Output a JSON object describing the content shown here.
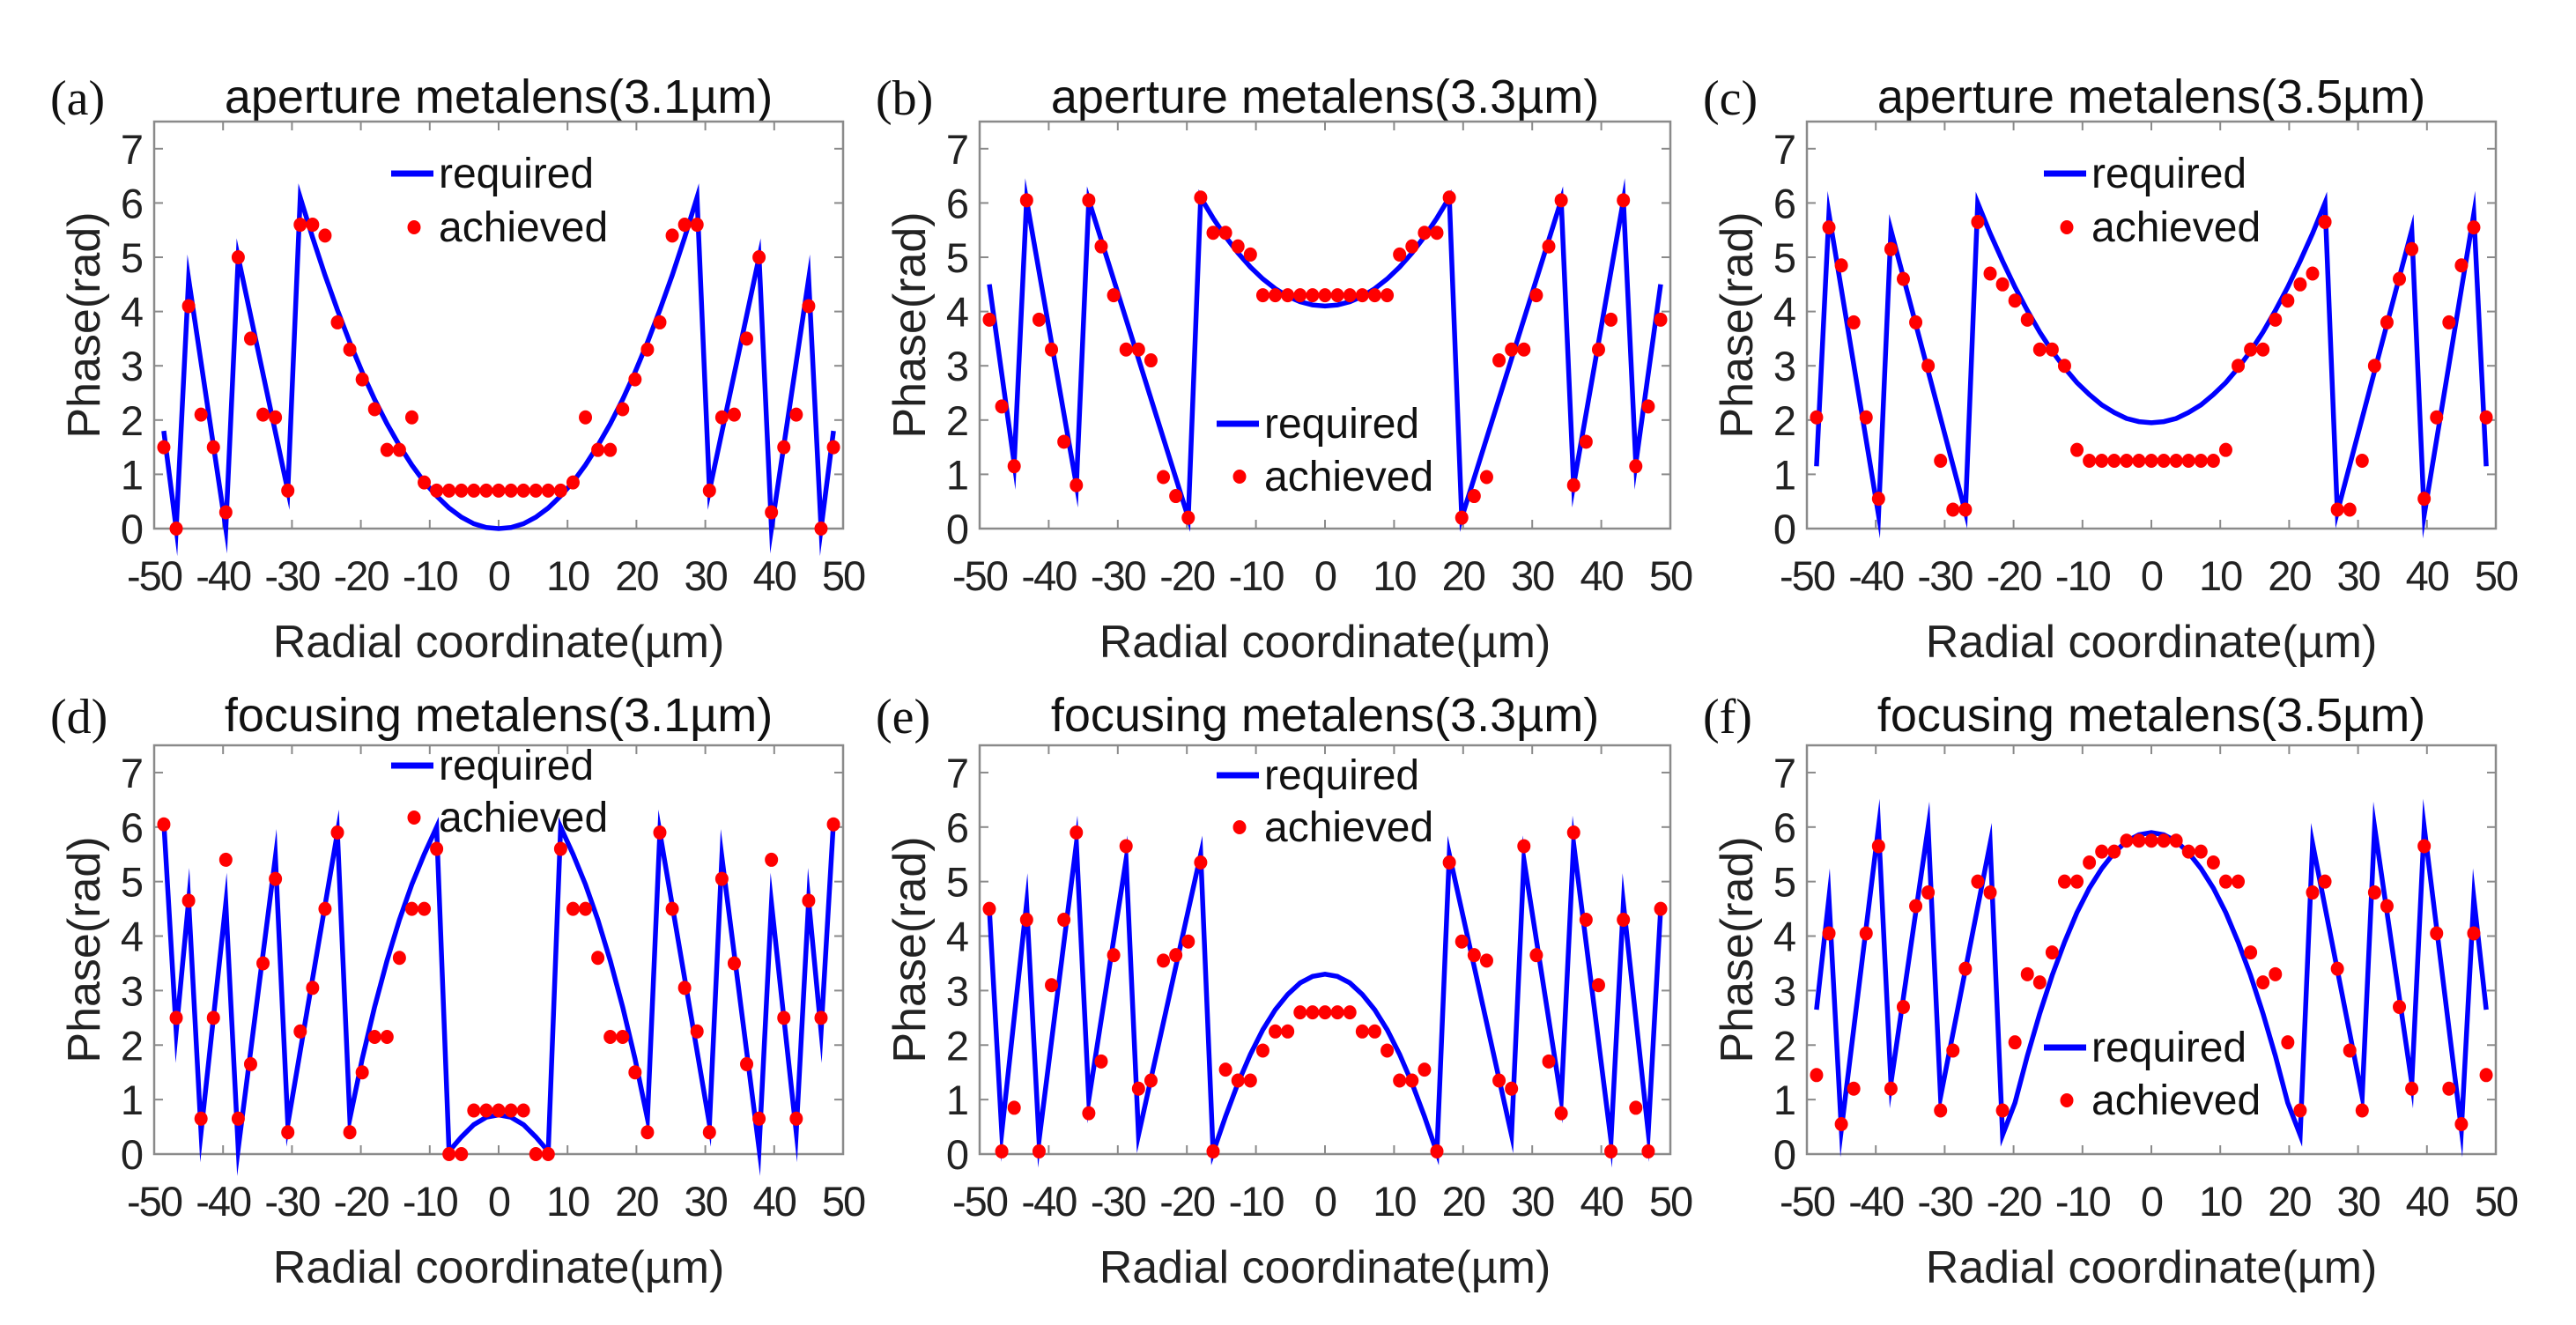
{
  "chart_data": [
    {
      "panel_label": "(a)",
      "title": "aperture metalens(3.1µm)",
      "type": "line+scatter",
      "xlabel": "Radial coordinate(µm)",
      "ylabel": "Phase(rad)",
      "xlim": [
        -50,
        50
      ],
      "ylim": [
        0,
        7.5
      ],
      "xticks": [
        -50,
        -40,
        -30,
        -20,
        -10,
        0,
        10,
        20,
        30,
        40,
        50
      ],
      "yticks": [
        0,
        1,
        2,
        3,
        4,
        5,
        6,
        7
      ],
      "legend": {
        "position": "top-center",
        "entries": [
          "required",
          "achieved"
        ]
      },
      "symmetric_about_zero": true,
      "series": [
        {
          "name": "required",
          "type": "line",
          "color": "#0000ff",
          "x": [
            0,
            1.8,
            3.6,
            5.4,
            7.2,
            9,
            10.8,
            12.6,
            14.4,
            16.2,
            18,
            19.8,
            21.6,
            23.4,
            25.2,
            27,
            28.8,
            30.6,
            37.8,
            39.6,
            45,
            46.8,
            48.6
          ],
          "y": [
            0,
            0.02,
            0.09,
            0.21,
            0.38,
            0.6,
            0.86,
            1.17,
            1.53,
            1.93,
            2.38,
            2.88,
            3.43,
            4.03,
            4.67,
            5.36,
            6.1,
            0.7,
            5.0,
            0,
            4.6,
            0,
            1.8
          ]
        },
        {
          "name": "achieved",
          "type": "scatter",
          "color": "#ff0000",
          "x": [
            0,
            1.8,
            3.6,
            5.4,
            7.2,
            9,
            10.8,
            12.6,
            14.4,
            16.2,
            18,
            19.8,
            21.6,
            23.4,
            25.2,
            27,
            28.8,
            30.6,
            32.4,
            34.2,
            36,
            37.8,
            39.6,
            41.4,
            43.2,
            45,
            46.8,
            48.6
          ],
          "y": [
            0.7,
            0.7,
            0.7,
            0.7,
            0.7,
            0.7,
            0.85,
            2.05,
            1.45,
            1.45,
            2.2,
            2.75,
            3.3,
            3.8,
            5.4,
            5.6,
            5.6,
            0.7,
            2.05,
            2.1,
            3.5,
            5.0,
            0.3,
            1.5,
            2.1,
            4.1,
            0,
            1.5
          ]
        }
      ]
    },
    {
      "panel_label": "(b)",
      "title": "aperture metalens(3.3µm)",
      "type": "line+scatter",
      "xlabel": "Radial coordinate(µm)",
      "ylabel": "Phase(rad)",
      "xlim": [
        -50,
        50
      ],
      "ylim": [
        0,
        7.5
      ],
      "xticks": [
        -50,
        -40,
        -30,
        -20,
        -10,
        0,
        10,
        20,
        30,
        40,
        50
      ],
      "yticks": [
        0,
        1,
        2,
        3,
        4,
        5,
        6,
        7
      ],
      "legend": {
        "position": "bottom-center",
        "entries": [
          "required",
          "achieved"
        ]
      },
      "symmetric_about_zero": true,
      "series": [
        {
          "name": "required",
          "type": "line",
          "color": "#0000ff",
          "x": [
            0,
            1.8,
            3.6,
            5.4,
            7.2,
            9,
            10.8,
            12.6,
            14.4,
            16.2,
            18,
            19.8,
            34.2,
            36,
            43.2,
            45,
            48.6
          ],
          "y": [
            4.1,
            4.12,
            4.18,
            4.28,
            4.42,
            4.6,
            4.82,
            5.08,
            5.38,
            5.72,
            6.1,
            0.2,
            6.05,
            0.8,
            6.05,
            1.2,
            4.5
          ]
        },
        {
          "name": "achieved",
          "type": "scatter",
          "color": "#ff0000",
          "x": [
            0,
            1.8,
            3.6,
            5.4,
            7.2,
            9,
            10.8,
            12.6,
            14.4,
            16.2,
            18,
            19.8,
            21.6,
            23.4,
            25.2,
            27,
            28.8,
            30.6,
            32.4,
            34.2,
            36,
            37.8,
            39.6,
            41.4,
            43.2,
            45,
            46.8,
            48.6
          ],
          "y": [
            4.3,
            4.3,
            4.3,
            4.3,
            4.3,
            4.3,
            5.05,
            5.2,
            5.45,
            5.45,
            6.1,
            0.2,
            0.6,
            0.95,
            3.1,
            3.3,
            3.3,
            4.3,
            5.2,
            6.05,
            0.8,
            1.6,
            3.3,
            3.85,
            6.05,
            1.15,
            2.25,
            3.85
          ]
        }
      ]
    },
    {
      "panel_label": "(c)",
      "title": "aperture metalens(3.5µm)",
      "type": "line+scatter",
      "xlabel": "Radial coordinate(µm)",
      "ylabel": "Phase(rad)",
      "xlim": [
        -50,
        50
      ],
      "ylim": [
        0,
        7.5
      ],
      "xticks": [
        -50,
        -40,
        -30,
        -20,
        -10,
        0,
        10,
        20,
        30,
        40,
        50
      ],
      "yticks": [
        0,
        1,
        2,
        3,
        4,
        5,
        6,
        7
      ],
      "legend": {
        "position": "top-center",
        "entries": [
          "required",
          "achieved"
        ]
      },
      "symmetric_about_zero": true,
      "series": [
        {
          "name": "required",
          "type": "line",
          "color": "#0000ff",
          "x": [
            0,
            1.8,
            3.6,
            5.4,
            7.2,
            9,
            10.8,
            12.6,
            14.4,
            16.2,
            18,
            19.8,
            21.6,
            23.4,
            25.2,
            27,
            37.8,
            39.6,
            46.8,
            48.6
          ],
          "y": [
            1.95,
            1.97,
            2.03,
            2.14,
            2.28,
            2.47,
            2.69,
            2.96,
            3.27,
            3.62,
            4.02,
            4.45,
            4.93,
            5.44,
            6.0,
            0.3,
            5.5,
            0.25,
            5.8,
            1.15
          ]
        },
        {
          "name": "achieved",
          "type": "scatter",
          "color": "#ff0000",
          "x": [
            0,
            1.8,
            3.6,
            5.4,
            7.2,
            9,
            10.8,
            12.6,
            14.4,
            16.2,
            18,
            19.8,
            21.6,
            23.4,
            25.2,
            27,
            28.8,
            30.6,
            32.4,
            34.2,
            36,
            37.8,
            39.6,
            41.4,
            43.2,
            45,
            46.8,
            48.6
          ],
          "y": [
            1.25,
            1.25,
            1.25,
            1.25,
            1.25,
            1.25,
            1.45,
            3.0,
            3.3,
            3.3,
            3.85,
            4.2,
            4.5,
            4.7,
            5.65,
            0.35,
            0.35,
            1.25,
            3.0,
            3.8,
            4.6,
            5.15,
            0.55,
            2.05,
            3.8,
            4.85,
            5.55,
            2.05
          ]
        }
      ]
    },
    {
      "panel_label": "(d)",
      "title": "focusing metalens(3.1µm)",
      "type": "line+scatter",
      "xlabel": "Radial coordinate(µm)",
      "ylabel": "Phase(rad)",
      "xlim": [
        -50,
        50
      ],
      "ylim": [
        0,
        7.5
      ],
      "xticks": [
        -50,
        -40,
        -30,
        -20,
        -10,
        0,
        10,
        20,
        30,
        40,
        50
      ],
      "yticks": [
        0,
        1,
        2,
        3,
        4,
        5,
        6,
        7
      ],
      "legend": {
        "position": "top-center",
        "entries": [
          "required",
          "achieved"
        ]
      },
      "symmetric_about_zero": true,
      "series": [
        {
          "name": "required",
          "type": "line",
          "color": "#0000ff",
          "x": [
            0,
            1.8,
            3.6,
            5.4,
            7.2,
            9,
            10.8,
            12.6,
            14.4,
            16.2,
            18,
            19.8,
            21.6,
            23.4,
            30.6,
            32.4,
            37.8,
            39.6,
            43.2,
            45,
            46.8,
            48.6
          ],
          "y": [
            0.72,
            0.675,
            0.54,
            0.315,
            0.05,
            6.0,
            5.5,
            4.95,
            4.3,
            3.55,
            2.7,
            1.75,
            0.65,
            5.9,
            0.55,
            5.45,
            0.1,
            4.6,
            0.4,
            4.65,
            2.25,
            6.1
          ]
        },
        {
          "name": "achieved",
          "type": "scatter",
          "color": "#ff0000",
          "x": [
            0,
            1.8,
            3.6,
            5.4,
            7.2,
            9,
            10.8,
            12.6,
            14.4,
            16.2,
            18,
            19.8,
            21.6,
            23.4,
            25.2,
            27,
            28.8,
            30.6,
            32.4,
            34.2,
            36,
            37.8,
            39.6,
            41.4,
            43.2,
            45,
            46.8,
            48.6
          ],
          "y": [
            0.8,
            0.8,
            0.8,
            0,
            0,
            5.6,
            4.5,
            4.5,
            3.6,
            2.15,
            2.15,
            1.5,
            0.4,
            5.9,
            4.5,
            3.05,
            2.25,
            0.4,
            5.05,
            3.5,
            1.65,
            0.65,
            5.4,
            2.5,
            0.65,
            4.65,
            2.5,
            6.05
          ]
        }
      ]
    },
    {
      "panel_label": "(e)",
      "title": "focusing metalens(3.3µm)",
      "type": "line+scatter",
      "xlabel": "Radial coordinate(µm)",
      "ylabel": "Phase(rad)",
      "xlim": [
        -50,
        50
      ],
      "ylim": [
        0,
        7.5
      ],
      "xticks": [
        -50,
        -40,
        -30,
        -20,
        -10,
        0,
        10,
        20,
        30,
        40,
        50
      ],
      "yticks": [
        0,
        1,
        2,
        3,
        4,
        5,
        6,
        7
      ],
      "legend": {
        "position": "top-center",
        "entries": [
          "required",
          "achieved"
        ]
      },
      "symmetric_about_zero": true,
      "series": [
        {
          "name": "required",
          "type": "line",
          "color": "#0000ff",
          "x": [
            0,
            1.8,
            3.6,
            5.4,
            7.2,
            9,
            10.8,
            12.6,
            14.4,
            16.2,
            18,
            27,
            28.8,
            34.2,
            36,
            41.4,
            43.2,
            46.8,
            48.6
          ],
          "y": [
            3.3,
            3.26,
            3.14,
            2.93,
            2.65,
            2.28,
            1.83,
            1.3,
            0.69,
            0.03,
            5.5,
            0.35,
            5.4,
            1.0,
            5.7,
            0.25,
            4.6,
            0.4,
            4.5
          ]
        },
        {
          "name": "achieved",
          "type": "scatter",
          "color": "#ff0000",
          "x": [
            0,
            1.8,
            3.6,
            5.4,
            7.2,
            9,
            10.8,
            12.6,
            14.4,
            16.2,
            18,
            19.8,
            21.6,
            23.4,
            25.2,
            27,
            28.8,
            30.6,
            32.4,
            34.2,
            36,
            37.8,
            39.6,
            41.4,
            43.2,
            45,
            46.8,
            48.6
          ],
          "y": [
            2.6,
            2.6,
            2.6,
            2.25,
            2.25,
            1.9,
            1.35,
            1.35,
            1.55,
            0.05,
            5.35,
            3.9,
            3.65,
            3.55,
            1.35,
            1.2,
            5.65,
            3.65,
            1.7,
            0.75,
            5.9,
            4.3,
            3.1,
            0.05,
            4.3,
            0.85,
            0.05,
            4.5
          ]
        }
      ]
    },
    {
      "panel_label": "(f)",
      "title": "focusing metalens(3.5µm)",
      "type": "line+scatter",
      "xlabel": "Radial coordinate(µm)",
      "ylabel": "Phase(rad)",
      "xlim": [
        -50,
        50
      ],
      "ylim": [
        0,
        7.5
      ],
      "xticks": [
        -50,
        -40,
        -30,
        -20,
        -10,
        0,
        10,
        20,
        30,
        40,
        50
      ],
      "yticks": [
        0,
        1,
        2,
        3,
        4,
        5,
        6,
        7
      ],
      "legend": {
        "position": "bottom-center",
        "entries": [
          "required",
          "achieved"
        ]
      },
      "symmetric_about_zero": true,
      "series": [
        {
          "name": "required",
          "type": "line",
          "color": "#0000ff",
          "x": [
            0,
            1.8,
            3.6,
            5.4,
            7.2,
            9,
            10.8,
            12.6,
            14.4,
            16.2,
            18,
            19.8,
            21.6,
            23.4,
            30.6,
            32.4,
            37.8,
            39.6,
            45,
            46.8,
            48.6
          ],
          "y": [
            5.9,
            5.86,
            5.74,
            5.53,
            5.24,
            4.88,
            4.43,
            3.89,
            3.28,
            2.58,
            1.8,
            0.94,
            0.35,
            5.7,
            1.05,
            6.0,
            1.3,
            6.0,
            0.45,
            4.7,
            2.65
          ]
        },
        {
          "name": "achieved",
          "type": "scatter",
          "color": "#ff0000",
          "x": [
            0,
            1.8,
            3.6,
            5.4,
            7.2,
            9,
            10.8,
            12.6,
            14.4,
            16.2,
            18,
            19.8,
            21.6,
            23.4,
            25.2,
            27,
            28.8,
            30.6,
            32.4,
            34.2,
            36,
            37.8,
            39.6,
            41.4,
            43.2,
            45,
            46.8,
            48.6
          ],
          "y": [
            5.75,
            5.75,
            5.75,
            5.55,
            5.55,
            5.35,
            5.0,
            5.0,
            3.7,
            3.15,
            3.3,
            2.05,
            0.8,
            4.8,
            5.0,
            3.4,
            1.9,
            0.8,
            4.8,
            4.55,
            2.7,
            1.2,
            5.65,
            4.05,
            1.2,
            0.55,
            4.05,
            1.45
          ]
        }
      ]
    }
  ]
}
